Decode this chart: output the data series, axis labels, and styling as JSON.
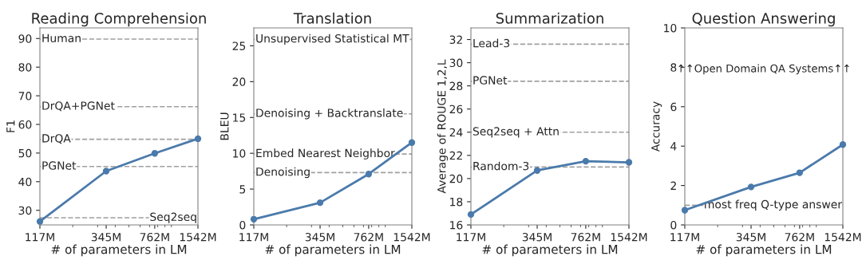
{
  "chart_data": [
    {
      "type": "line",
      "title": "Reading Comprehension",
      "xlabel": "# of parameters in LM",
      "ylabel": "F1",
      "log": "x",
      "marker": "circle",
      "grid": false,
      "x": [
        117,
        345,
        762,
        1542
      ],
      "series": [
        {
          "color": "#4a7aab",
          "values": [
            26.1,
            43.7,
            49.9,
            55.0
          ]
        }
      ],
      "xlim": [
        117,
        1542
      ],
      "xticks": [
        {
          "value": 117,
          "label": "117M"
        },
        {
          "value": 345,
          "label": "345M"
        },
        {
          "value": 762,
          "label": "762M"
        },
        {
          "value": 1542,
          "label": "1542M"
        }
      ],
      "ylim": [
        24.9,
        93.7
      ],
      "yticks": [
        30,
        40,
        50,
        60,
        70,
        80,
        90
      ],
      "ref_lines": [
        {
          "axis": "y",
          "value": 89.8,
          "label": "Human",
          "color": "#a0a0a0",
          "line_style": "dashed"
        },
        {
          "axis": "y",
          "value": 66.2,
          "label": "DrQA+PGNet",
          "color": "#a0a0a0",
          "line_style": "dashed"
        },
        {
          "axis": "y",
          "value": 54.8,
          "label": "DrQA",
          "color": "#a0a0a0",
          "line_style": "dashed"
        },
        {
          "axis": "y",
          "value": 45.3,
          "label": "PGNet",
          "color": "#a0a0a0",
          "line_style": "dashed"
        },
        {
          "axis": "y",
          "value": 27.4,
          "label": "Seq2seq",
          "color": "#a0a0a0",
          "line_style": "dashed"
        }
      ]
    },
    {
      "type": "line",
      "title": "Translation",
      "xlabel": "# of parameters in LM",
      "ylabel": "BLEU",
      "log": "x",
      "marker": "circle",
      "grid": false,
      "x": [
        117,
        345,
        762,
        1542
      ],
      "series": [
        {
          "color": "#4a7aab",
          "values": [
            0.8,
            3.1,
            7.1,
            11.5
          ]
        }
      ],
      "xlim": [
        117,
        1542
      ],
      "xticks": [
        {
          "value": 117,
          "label": "117M"
        },
        {
          "value": 345,
          "label": "345M"
        },
        {
          "value": 762,
          "label": "762M"
        },
        {
          "value": 1542,
          "label": "1542M"
        }
      ],
      "ylim": [
        0,
        27.5
      ],
      "yticks": [
        0,
        5,
        10,
        15,
        20,
        25
      ],
      "ref_lines": [
        {
          "axis": "y",
          "value": 25.9,
          "label": "Unsupervised Statistical MT",
          "color": "#a0a0a0",
          "line_style": "dashed"
        },
        {
          "axis": "y",
          "value": 15.5,
          "label": "Denoising + Backtranslate",
          "color": "#a0a0a0",
          "line_style": "dashed"
        },
        {
          "axis": "y",
          "value": 9.9,
          "label": "Embed Nearest Neighbor",
          "color": "#a0a0a0",
          "line_style": "dashed"
        },
        {
          "axis": "y",
          "value": 7.3,
          "label": "Denoising",
          "color": "#a0a0a0",
          "line_style": "dashed"
        }
      ]
    },
    {
      "type": "line",
      "title": "Summarization",
      "xlabel": "# of parameters in LM",
      "ylabel": "Average of ROUGE 1,2,L",
      "log": "x",
      "marker": "circle",
      "grid": false,
      "x": [
        117,
        345,
        762,
        1542
      ],
      "series": [
        {
          "color": "#4a7aab",
          "values": [
            16.9,
            20.7,
            21.5,
            21.4
          ]
        }
      ],
      "xlim": [
        117,
        1542
      ],
      "xticks": [
        {
          "value": 117,
          "label": "117M"
        },
        {
          "value": 345,
          "label": "345M"
        },
        {
          "value": 762,
          "label": "762M"
        },
        {
          "value": 1542,
          "label": "1542M"
        }
      ],
      "ylim": [
        16,
        33
      ],
      "yticks": [
        16,
        18,
        20,
        22,
        24,
        26,
        28,
        30,
        32
      ],
      "ref_lines": [
        {
          "axis": "y",
          "value": 31.6,
          "label": "Lead-3",
          "color": "#a0a0a0",
          "line_style": "dashed"
        },
        {
          "axis": "y",
          "value": 28.4,
          "label": "PGNet",
          "color": "#a0a0a0",
          "line_style": "dashed"
        },
        {
          "axis": "y",
          "value": 24.0,
          "label": "Seq2seq + Attn",
          "color": "#a0a0a0",
          "line_style": "dashed"
        },
        {
          "axis": "y",
          "value": 21.0,
          "label": "Random-3",
          "color": "#a0a0a0",
          "line_style": "dashed"
        }
      ]
    },
    {
      "type": "line",
      "title": "Question Answering",
      "xlabel": "# of parameters in LM",
      "ylabel": "Accuracy",
      "log": "x",
      "marker": "circle",
      "grid": false,
      "x": [
        117,
        345,
        762,
        1542
      ],
      "series": [
        {
          "color": "#4a7aab",
          "values": [
            0.75,
            1.93,
            2.65,
            4.08
          ]
        }
      ],
      "xlim": [
        117,
        1542
      ],
      "xticks": [
        {
          "value": 117,
          "label": "117M"
        },
        {
          "value": 345,
          "label": "345M"
        },
        {
          "value": 762,
          "label": "762M"
        },
        {
          "value": 1542,
          "label": "1542M"
        }
      ],
      "ylim": [
        0,
        10
      ],
      "yticks": [
        0,
        2,
        4,
        6,
        8,
        10
      ],
      "annotations": [
        "↑↑Open Domain QA Systems↑↑"
      ],
      "ref_lines": [
        {
          "axis": "y",
          "value": 1.0,
          "label": "most freq Q-type answer",
          "color": "#a0a0a0",
          "line_style": "dashed"
        }
      ]
    }
  ]
}
